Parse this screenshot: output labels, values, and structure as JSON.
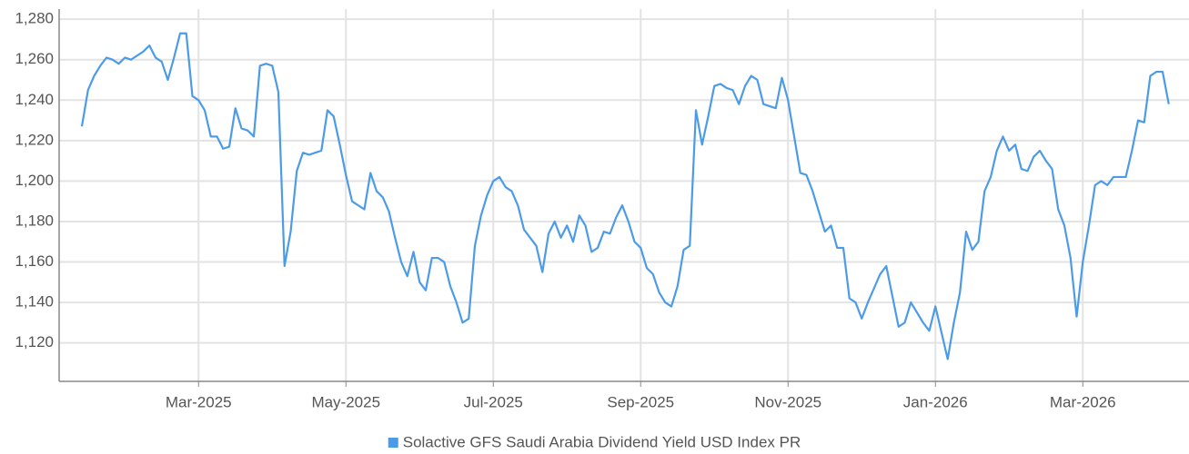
{
  "chart_data": {
    "type": "line",
    "categories": [
      null,
      null,
      null,
      null,
      null,
      null,
      null,
      null,
      null,
      null,
      null,
      null,
      null,
      null,
      null,
      null,
      null,
      null,
      null,
      "Mar-2025",
      null,
      null,
      null,
      null,
      null,
      null,
      null,
      null,
      null,
      null,
      null,
      null,
      null,
      null,
      null,
      null,
      null,
      null,
      null,
      null,
      null,
      null,
      null,
      "May-2025",
      null,
      null,
      null,
      null,
      null,
      null,
      null,
      null,
      null,
      null,
      null,
      null,
      null,
      null,
      null,
      null,
      null,
      null,
      null,
      null,
      null,
      null,
      null,
      "Jul-2025",
      null,
      null,
      null,
      null,
      null,
      null,
      null,
      null,
      null,
      null,
      null,
      null,
      null,
      null,
      null,
      null,
      null,
      null,
      null,
      null,
      null,
      null,
      null,
      "Sep-2025",
      null,
      null,
      null,
      null,
      null,
      null,
      null,
      null,
      null,
      null,
      null,
      null,
      null,
      null,
      null,
      null,
      null,
      null,
      null,
      null,
      null,
      null,
      null,
      "Nov-2025",
      null,
      null,
      null,
      null,
      null,
      null,
      null,
      null,
      null,
      null,
      null,
      null,
      null,
      null,
      null,
      null,
      null,
      null,
      null,
      null,
      null,
      null,
      null,
      "Jan-2026",
      null,
      null,
      null,
      null,
      null,
      null,
      null,
      null,
      null,
      null,
      null,
      null,
      null,
      null,
      null,
      null,
      null,
      null,
      null,
      null,
      null,
      null,
      null,
      "Mar-2026",
      null,
      null,
      null,
      null,
      null,
      null,
      null,
      null,
      null,
      null,
      null,
      null,
      null,
      null
    ],
    "series": [
      {
        "name": "Solactive GFS Saudi Arabia Dividend Yield USD Index PR",
        "color": "#4c9be8",
        "values": [
          1227,
          1245,
          1252,
          1257,
          1261,
          1260,
          1258,
          1261,
          1260,
          1262,
          1264,
          1267,
          1261,
          1259,
          1250,
          1261,
          1273,
          1273,
          1242,
          1240,
          1235,
          1222,
          1222,
          1216,
          1217,
          1236,
          1226,
          1225,
          1222,
          1257,
          1258,
          1257,
          1244,
          1158,
          1175,
          1205,
          1214,
          1213,
          1214,
          1215,
          1235,
          1232,
          1218,
          1203,
          1190,
          1188,
          1186,
          1204,
          1195,
          1192,
          1185,
          1172,
          1160,
          1153,
          1165,
          1150,
          1146,
          1162,
          1162,
          1160,
          1148,
          1140,
          1130,
          1132,
          1168,
          1183,
          1193,
          1200,
          1202,
          1197,
          1195,
          1188,
          1176,
          1172,
          1168,
          1155,
          1174,
          1180,
          1172,
          1178,
          1170,
          1183,
          1178,
          1165,
          1167,
          1175,
          1174,
          1182,
          1188,
          1180,
          1170,
          1167,
          1157,
          1154,
          1145,
          1140,
          1138,
          1148,
          1166,
          1168,
          1235,
          1218,
          1232,
          1247,
          1248,
          1246,
          1245,
          1238,
          1247,
          1252,
          1250,
          1238,
          1237,
          1236,
          1251,
          1240,
          1222,
          1204,
          1203,
          1195,
          1185,
          1175,
          1178,
          1167,
          1167,
          1142,
          1140,
          1132,
          1140,
          1147,
          1154,
          1158,
          1143,
          1128,
          1130,
          1140,
          1135,
          1130,
          1126,
          1138,
          1125,
          1112,
          1130,
          1145,
          1175,
          1166,
          1170,
          1195,
          1202,
          1215,
          1222,
          1215,
          1218,
          1206,
          1205,
          1212,
          1215,
          1210,
          1206,
          1186,
          1178,
          1162,
          1133,
          1160,
          1178,
          1198,
          1200,
          1198,
          1202,
          1202,
          1202,
          1215,
          1230,
          1229,
          1252,
          1254,
          1254,
          1238
        ]
      }
    ],
    "ylim": [
      1101,
      1285
    ],
    "yticks": [
      {
        "value": 1120,
        "label": "1,120"
      },
      {
        "value": 1140,
        "label": "1,140"
      },
      {
        "value": 1160,
        "label": "1,160"
      },
      {
        "value": 1180,
        "label": "1,180"
      },
      {
        "value": 1200,
        "label": "1,200"
      },
      {
        "value": 1220,
        "label": "1,220"
      },
      {
        "value": 1240,
        "label": "1,240"
      },
      {
        "value": 1260,
        "label": "1,260"
      },
      {
        "value": 1280,
        "label": "1,280"
      }
    ],
    "grid": true,
    "legend": "bottom"
  }
}
